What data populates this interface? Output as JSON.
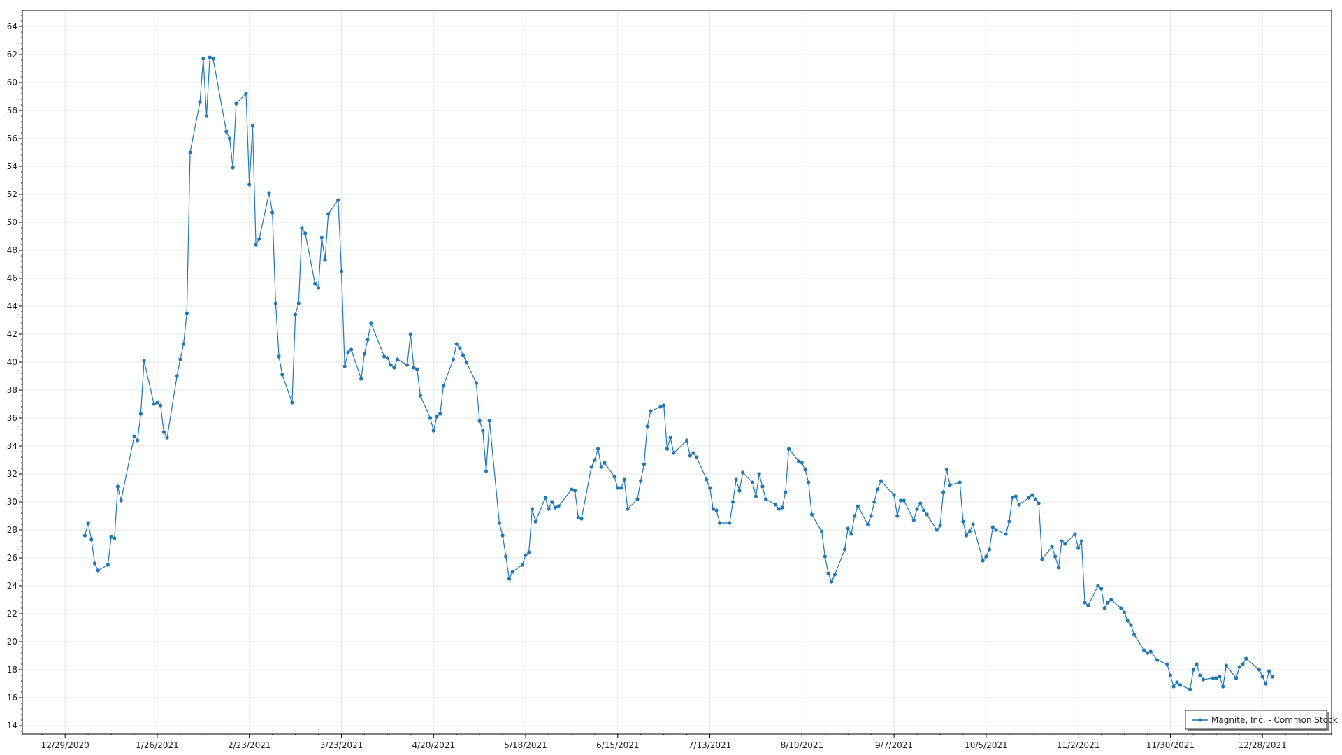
{
  "chart_data": {
    "type": "line",
    "title": "",
    "xlabel": "",
    "ylabel": "",
    "xlim": [
      "2020-12-16",
      "2022-01-18"
    ],
    "ylim": [
      13.4,
      65.15
    ],
    "x_ticks": [
      "12/29/2020",
      "1/26/2021",
      "2/23/2021",
      "3/23/2021",
      "4/20/2021",
      "5/18/2021",
      "6/15/2021",
      "7/13/2021",
      "8/10/2021",
      "9/7/2021",
      "10/5/2021",
      "11/2/2021",
      "11/30/2021",
      "12/28/2021"
    ],
    "y_ticks": [
      14,
      16,
      18,
      20,
      22,
      24,
      26,
      28,
      30,
      32,
      34,
      36,
      38,
      40,
      42,
      44,
      46,
      48,
      50,
      52,
      54,
      56,
      58,
      60,
      62,
      64
    ],
    "grid": true,
    "legend_position": "bottom-right",
    "color": "#1f77b4",
    "series": [
      {
        "name": "Magnite, Inc. - Common Stock",
        "x": [
          "2021-01-04",
          "2021-01-05",
          "2021-01-06",
          "2021-01-07",
          "2021-01-08",
          "2021-01-11",
          "2021-01-12",
          "2021-01-13",
          "2021-01-14",
          "2021-01-15",
          "2021-01-19",
          "2021-01-20",
          "2021-01-21",
          "2021-01-22",
          "2021-01-25",
          "2021-01-26",
          "2021-01-27",
          "2021-01-28",
          "2021-01-29",
          "2021-02-01",
          "2021-02-02",
          "2021-02-03",
          "2021-02-04",
          "2021-02-05",
          "2021-02-08",
          "2021-02-09",
          "2021-02-10",
          "2021-02-11",
          "2021-02-12",
          "2021-02-16",
          "2021-02-17",
          "2021-02-18",
          "2021-02-19",
          "2021-02-22",
          "2021-02-23",
          "2021-02-24",
          "2021-02-25",
          "2021-02-26",
          "2021-03-01",
          "2021-03-02",
          "2021-03-03",
          "2021-03-04",
          "2021-03-05",
          "2021-03-08",
          "2021-03-09",
          "2021-03-10",
          "2021-03-11",
          "2021-03-12",
          "2021-03-15",
          "2021-03-16",
          "2021-03-17",
          "2021-03-18",
          "2021-03-19",
          "2021-03-22",
          "2021-03-23",
          "2021-03-24",
          "2021-03-25",
          "2021-03-26",
          "2021-03-29",
          "2021-03-30",
          "2021-03-31",
          "2021-04-01",
          "2021-04-05",
          "2021-04-06",
          "2021-04-07",
          "2021-04-08",
          "2021-04-09",
          "2021-04-12",
          "2021-04-13",
          "2021-04-14",
          "2021-04-15",
          "2021-04-16",
          "2021-04-19",
          "2021-04-20",
          "2021-04-21",
          "2021-04-22",
          "2021-04-23",
          "2021-04-26",
          "2021-04-27",
          "2021-04-28",
          "2021-04-29",
          "2021-04-30",
          "2021-05-03",
          "2021-05-04",
          "2021-05-05",
          "2021-05-06",
          "2021-05-07",
          "2021-05-10",
          "2021-05-11",
          "2021-05-12",
          "2021-05-13",
          "2021-05-14",
          "2021-05-17",
          "2021-05-18",
          "2021-05-19",
          "2021-05-20",
          "2021-05-21",
          "2021-05-24",
          "2021-05-25",
          "2021-05-26",
          "2021-05-27",
          "2021-05-28",
          "2021-06-01",
          "2021-06-02",
          "2021-06-03",
          "2021-06-04",
          "2021-06-07",
          "2021-06-08",
          "2021-06-09",
          "2021-06-10",
          "2021-06-11",
          "2021-06-14",
          "2021-06-15",
          "2021-06-16",
          "2021-06-17",
          "2021-06-18",
          "2021-06-21",
          "2021-06-22",
          "2021-06-23",
          "2021-06-24",
          "2021-06-25",
          "2021-06-28",
          "2021-06-29",
          "2021-06-30",
          "2021-07-01",
          "2021-07-02",
          "2021-07-06",
          "2021-07-07",
          "2021-07-08",
          "2021-07-09",
          "2021-07-12",
          "2021-07-13",
          "2021-07-14",
          "2021-07-15",
          "2021-07-16",
          "2021-07-19",
          "2021-07-20",
          "2021-07-21",
          "2021-07-22",
          "2021-07-23",
          "2021-07-26",
          "2021-07-27",
          "2021-07-28",
          "2021-07-29",
          "2021-07-30",
          "2021-08-02",
          "2021-08-03",
          "2021-08-04",
          "2021-08-05",
          "2021-08-06",
          "2021-08-09",
          "2021-08-10",
          "2021-08-11",
          "2021-08-12",
          "2021-08-13",
          "2021-08-16",
          "2021-08-17",
          "2021-08-18",
          "2021-08-19",
          "2021-08-20",
          "2021-08-23",
          "2021-08-24",
          "2021-08-25",
          "2021-08-26",
          "2021-08-27",
          "2021-08-30",
          "2021-08-31",
          "2021-09-01",
          "2021-09-02",
          "2021-09-03",
          "2021-09-07",
          "2021-09-08",
          "2021-09-09",
          "2021-09-10",
          "2021-09-13",
          "2021-09-14",
          "2021-09-15",
          "2021-09-16",
          "2021-09-17",
          "2021-09-20",
          "2021-09-21",
          "2021-09-22",
          "2021-09-23",
          "2021-09-24",
          "2021-09-27",
          "2021-09-28",
          "2021-09-29",
          "2021-09-30",
          "2021-10-01",
          "2021-10-04",
          "2021-10-05",
          "2021-10-06",
          "2021-10-07",
          "2021-10-08",
          "2021-10-11",
          "2021-10-12",
          "2021-10-13",
          "2021-10-14",
          "2021-10-15",
          "2021-10-18",
          "2021-10-19",
          "2021-10-20",
          "2021-10-21",
          "2021-10-22",
          "2021-10-25",
          "2021-10-26",
          "2021-10-27",
          "2021-10-28",
          "2021-10-29",
          "2021-11-01",
          "2021-11-02",
          "2021-11-03",
          "2021-11-04",
          "2021-11-05",
          "2021-11-08",
          "2021-11-09",
          "2021-11-10",
          "2021-11-11",
          "2021-11-12",
          "2021-11-15",
          "2021-11-16",
          "2021-11-17",
          "2021-11-18",
          "2021-11-19",
          "2021-11-22",
          "2021-11-23",
          "2021-11-24",
          "2021-11-26",
          "2021-11-29",
          "2021-11-30",
          "2021-12-01",
          "2021-12-02",
          "2021-12-03",
          "2021-12-06",
          "2021-12-07",
          "2021-12-08",
          "2021-12-09",
          "2021-12-10",
          "2021-12-13",
          "2021-12-14",
          "2021-12-15",
          "2021-12-16",
          "2021-12-17",
          "2021-12-20",
          "2021-12-21",
          "2021-12-22",
          "2021-12-23",
          "2021-12-27",
          "2021-12-28",
          "2021-12-29",
          "2021-12-30",
          "2021-12-31"
        ],
        "values": [
          27.6,
          28.5,
          27.3,
          25.6,
          25.1,
          25.5,
          27.5,
          27.4,
          31.1,
          30.1,
          34.7,
          34.4,
          36.3,
          40.1,
          37.0,
          37.1,
          36.9,
          35.0,
          34.6,
          39.0,
          40.2,
          41.3,
          43.5,
          55.0,
          58.6,
          61.7,
          57.6,
          61.8,
          61.7,
          56.5,
          56.0,
          53.9,
          58.5,
          59.2,
          52.7,
          56.9,
          48.4,
          48.8,
          52.1,
          50.7,
          44.2,
          40.4,
          39.1,
          37.1,
          43.4,
          44.2,
          49.6,
          49.2,
          45.6,
          45.3,
          48.9,
          47.3,
          50.6,
          51.6,
          46.5,
          39.7,
          40.7,
          40.9,
          38.8,
          40.6,
          41.6,
          42.8,
          40.4,
          40.3,
          39.8,
          39.6,
          40.2,
          39.8,
          42.0,
          39.6,
          39.5,
          37.6,
          36.0,
          35.1,
          36.1,
          36.3,
          38.3,
          40.2,
          41.3,
          41.0,
          40.5,
          40.0,
          38.5,
          35.8,
          35.1,
          32.2,
          35.8,
          28.5,
          27.6,
          26.1,
          24.5,
          25.0,
          25.5,
          26.2,
          26.4,
          29.5,
          28.6,
          30.3,
          29.5,
          30.0,
          29.6,
          29.7,
          30.9,
          30.8,
          28.9,
          28.8,
          32.5,
          33.0,
          33.8,
          32.5,
          32.8,
          31.8,
          31.0,
          31.0,
          31.6,
          29.5,
          30.2,
          31.5,
          32.7,
          35.4,
          36.5,
          36.8,
          36.9,
          33.8,
          34.6,
          33.5,
          34.4,
          33.3,
          33.5,
          33.2,
          31.6,
          31.0,
          29.5,
          29.4,
          28.5,
          28.5,
          30.0,
          31.6,
          30.8,
          32.1,
          31.4,
          30.4,
          32.0,
          31.1,
          30.2,
          29.8,
          29.5,
          29.6,
          30.7,
          33.8,
          32.9,
          32.8,
          32.3,
          31.4,
          29.1,
          27.9,
          26.1,
          24.9,
          24.3,
          24.8,
          26.6,
          28.1,
          27.7,
          29.0,
          29.7,
          28.4,
          29.0,
          30.0,
          30.9,
          31.5,
          30.5,
          29.0,
          30.1,
          30.1,
          28.7,
          29.5,
          29.9,
          29.4,
          29.1,
          28.0,
          28.3,
          30.7,
          32.3,
          31.2,
          31.4,
          28.6,
          27.6,
          27.9,
          28.4,
          25.8,
          26.1,
          26.6,
          28.2,
          28.0,
          27.7,
          28.6,
          30.3,
          30.4,
          29.8,
          30.3,
          30.5,
          30.2,
          29.9,
          25.9,
          26.8,
          26.1,
          25.3,
          27.2,
          27.0,
          27.7,
          26.7,
          27.2,
          22.8,
          22.6,
          24.0,
          23.8,
          22.4,
          22.8,
          23.0,
          22.4,
          22.1,
          21.5,
          21.2,
          20.5,
          19.4,
          19.2,
          19.3,
          18.7,
          18.4,
          17.6,
          16.8,
          17.1,
          16.9,
          16.6,
          18.0,
          18.4,
          17.6,
          17.3,
          17.4,
          17.4,
          17.5,
          16.8,
          18.3,
          17.4,
          18.2,
          18.4,
          18.8,
          18.0,
          17.5,
          17.0,
          17.9,
          17.5
        ]
      }
    ]
  }
}
